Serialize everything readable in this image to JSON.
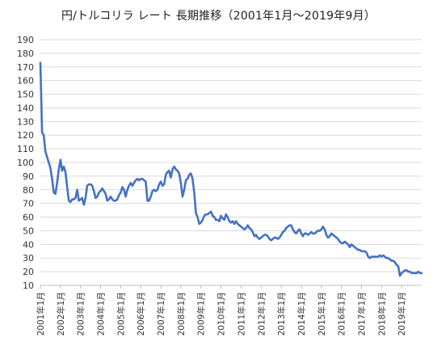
{
  "chart_data": {
    "type": "line",
    "title": "円/トルコリラ レート 長期推移（2001年1月～2019年9月）",
    "xlabel": "",
    "ylabel": "",
    "ylim": [
      10,
      190
    ],
    "ytick_step": 10,
    "grid": true,
    "legend": "none",
    "x_tick_labels": [
      "2001年1月",
      "2002年1月",
      "2003年1月",
      "2004年1月",
      "2005年1月",
      "2006年1月",
      "2007年1月",
      "2008年1月",
      "2009年1月",
      "2010年1月",
      "2011年1月",
      "2012年1月",
      "2013年1月",
      "2014年1月",
      "2015年1月",
      "2016年1月",
      "2017年1月",
      "2018年1月",
      "2019年1月"
    ],
    "x_start": "2001-01",
    "x_end": "2019-09",
    "line_color": "#4472c4",
    "series": [
      {
        "values": [
          173,
          122,
          120,
          108,
          104,
          100,
          96,
          88,
          78,
          77,
          85,
          95,
          102,
          94,
          97,
          93,
          82,
          72,
          71,
          73,
          73,
          74,
          80,
          72,
          73,
          74,
          69,
          74,
          83,
          84,
          84,
          83,
          79,
          74,
          75,
          78,
          79,
          81,
          79,
          77,
          72,
          73,
          75,
          73,
          72,
          72,
          73,
          76,
          78,
          82,
          80,
          75,
          80,
          83,
          85,
          83,
          85,
          87,
          88,
          87,
          88,
          88,
          87,
          86,
          72,
          72,
          75,
          79,
          80,
          79,
          80,
          84,
          86,
          83,
          84,
          91,
          93,
          94,
          89,
          95,
          97,
          95,
          94,
          92,
          85,
          75,
          80,
          87,
          88,
          91,
          92,
          88,
          78,
          63,
          60,
          55,
          56,
          58,
          61,
          62,
          62,
          63,
          64,
          61,
          60,
          58,
          58,
          57,
          61,
          59,
          58,
          62,
          60,
          57,
          56,
          57,
          55,
          57,
          55,
          54,
          53,
          52,
          51,
          52,
          54,
          52,
          51,
          49,
          46,
          47,
          45,
          44,
          45,
          46,
          47,
          47,
          46,
          44,
          43,
          44,
          45,
          45,
          44,
          45,
          47,
          49,
          50,
          52,
          53,
          54,
          54,
          51,
          49,
          48,
          50,
          51,
          48,
          46,
          48,
          48,
          47,
          48,
          49,
          48,
          48,
          49,
          50,
          50,
          51,
          53,
          51,
          47,
          45,
          46,
          48,
          47,
          46,
          45,
          44,
          42,
          41,
          41,
          42,
          41,
          40,
          38,
          40,
          39,
          38,
          37,
          36,
          36,
          35,
          35,
          35,
          34,
          31,
          30,
          31,
          31,
          31,
          31,
          31,
          32,
          31,
          32,
          31,
          30,
          30,
          29,
          28,
          28,
          27,
          25,
          24,
          17,
          19,
          20,
          21,
          21,
          20,
          20,
          19,
          19,
          19,
          19,
          20,
          19,
          19
        ]
      }
    ]
  }
}
